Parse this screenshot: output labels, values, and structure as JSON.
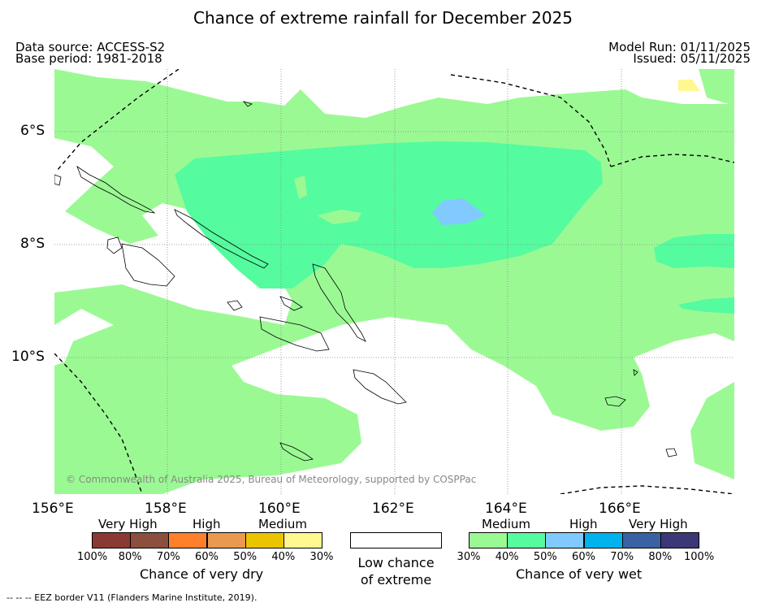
{
  "title": "Chance of extreme rainfall for December 2025",
  "meta": {
    "data_source": "Data source: ACCESS-S2",
    "base_period": "Base period: 1981-2018",
    "model_run": "Model Run: 01/11/2025",
    "issued": "Issued: 05/11/2025"
  },
  "axes": {
    "lat_labels": [
      "6°S",
      "8°S",
      "10°S"
    ],
    "lon_labels": [
      "156°E",
      "158°E",
      "160°E",
      "162°E",
      "164°E",
      "166°E"
    ]
  },
  "credit": "© Commonwealth of Australia 2025, Bureau of Meteorology, supported by COSPPac",
  "legend": {
    "dry": {
      "headers": [
        "Very High",
        "High",
        "Medium"
      ],
      "colors": [
        "#8b3a33",
        "#8c4f3f",
        "#ff7f2a",
        "#ea994f",
        "#eac400",
        "#fff78f"
      ],
      "pcts": [
        "100%",
        "80%",
        "70%",
        "60%",
        "50%",
        "40%",
        "30%"
      ],
      "caption": "Chance of very dry"
    },
    "neutral": {
      "caption_line1": "Low chance",
      "caption_line2": "of extreme"
    },
    "wet": {
      "headers": [
        "Medium",
        "High",
        "Very High"
      ],
      "colors": [
        "#9bf994",
        "#55fb9f",
        "#80caff",
        "#00b2ee",
        "#3a62a2",
        "#3c3878"
      ],
      "pcts": [
        "30%",
        "40%",
        "50%",
        "60%",
        "70%",
        "80%",
        "100%"
      ],
      "caption": "Chance of very wet"
    }
  },
  "footer": "--  --  -- EEZ border V11 (Flanders Marine Institute, 2019)."
}
